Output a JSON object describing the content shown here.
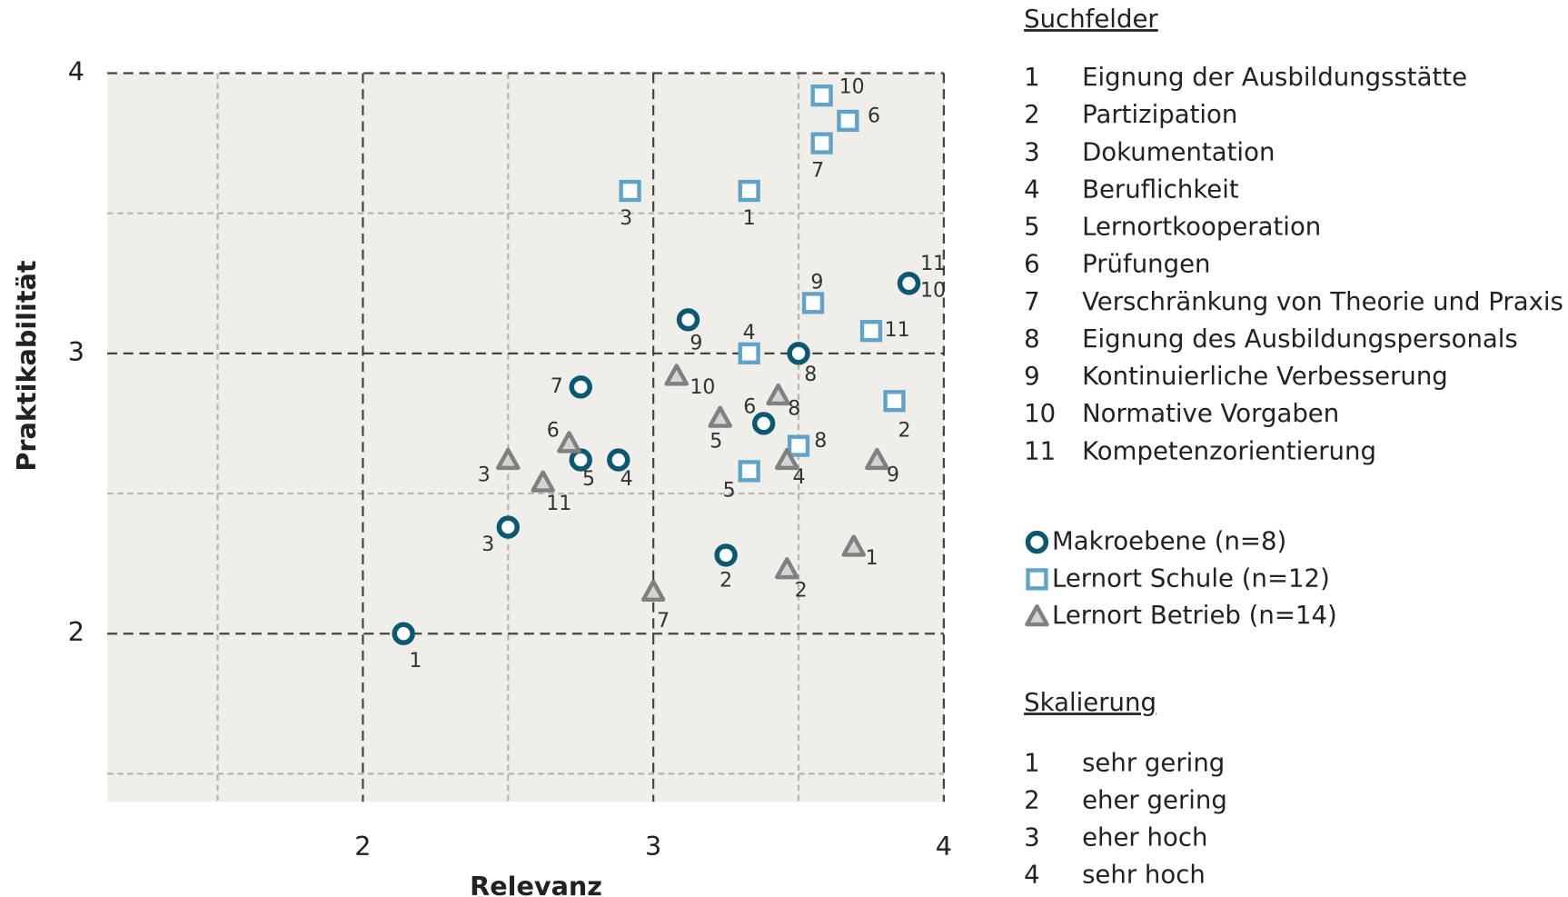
{
  "chart_data": {
    "type": "scatter",
    "x_label": "Relevanz",
    "y_label": "Praktikabilität",
    "xlim": [
      1.12,
      4
    ],
    "ylim": [
      1.4,
      4
    ],
    "xticks": [
      2,
      3,
      4
    ],
    "yticks": [
      2,
      3,
      4
    ],
    "xminor": [
      1.5,
      2.5,
      3.5
    ],
    "yminor": [
      1.5,
      2.5,
      3.5
    ],
    "grid": true,
    "series": [
      {
        "name": "Makroebene (n=8)",
        "color": "#0b5873",
        "marker": "circle",
        "labels": [
          "1",
          "2",
          "3",
          "4",
          "5",
          "6",
          "7",
          "8",
          "9",
          "10",
          "11"
        ],
        "x": [
          2.14,
          3.25,
          2.5,
          2.88,
          2.75,
          3.38,
          2.75,
          3.5,
          3.12,
          3.88,
          3.88
        ],
        "y": [
          2.0,
          2.28,
          2.38,
          2.62,
          2.62,
          2.75,
          2.88,
          3.0,
          3.12,
          3.25,
          3.25
        ]
      },
      {
        "name": "Lernort Schule (n=12)",
        "color": "#5fa3c8",
        "marker": "square",
        "labels": [
          "1",
          "2",
          "3",
          "4",
          "5",
          "6",
          "7",
          "8",
          "9",
          "10",
          "11"
        ],
        "x": [
          3.33,
          3.83,
          2.92,
          3.33,
          3.33,
          3.67,
          3.58,
          3.5,
          3.55,
          3.58,
          3.75
        ],
        "y": [
          3.58,
          2.83,
          3.58,
          3.0,
          2.58,
          3.83,
          3.75,
          2.67,
          3.18,
          3.92,
          3.08
        ]
      },
      {
        "name": "Lernort Betrieb (n=14)",
        "color": "#808080",
        "marker": "triangle",
        "labels": [
          "1",
          "2",
          "3",
          "4",
          "5",
          "6",
          "7",
          "8",
          "9",
          "10",
          "11"
        ],
        "x": [
          3.69,
          3.46,
          2.5,
          3.46,
          3.23,
          2.71,
          3.0,
          3.43,
          3.77,
          3.08,
          2.62
        ],
        "y": [
          2.31,
          2.23,
          2.62,
          2.62,
          2.77,
          2.68,
          2.15,
          2.85,
          2.62,
          2.92,
          2.54
        ]
      }
    ],
    "suchfelder_title": "Suchfelder",
    "suchfelder": [
      [
        "1",
        "Eignung der Ausbildungsstätte"
      ],
      [
        "2",
        "Partizipation"
      ],
      [
        "3",
        "Dokumentation"
      ],
      [
        "4",
        "Beruflichkeit"
      ],
      [
        "5",
        "Lernortkooperation"
      ],
      [
        "6",
        "Prüfungen"
      ],
      [
        "7",
        "Verschränkung von Theorie und Praxis"
      ],
      [
        "8",
        "Eignung des Ausbildungspersonals"
      ],
      [
        "9",
        "Kontinuierliche Verbesserung"
      ],
      [
        "10",
        "Normative Vorgaben"
      ],
      [
        "11",
        "Kompetenzorientierung"
      ]
    ],
    "skalierung_title": "Skalierung",
    "skalierung": [
      [
        "1",
        "sehr gering"
      ],
      [
        "2",
        "eher gering"
      ],
      [
        "3",
        "eher hoch"
      ],
      [
        "4",
        "sehr hoch"
      ]
    ]
  }
}
